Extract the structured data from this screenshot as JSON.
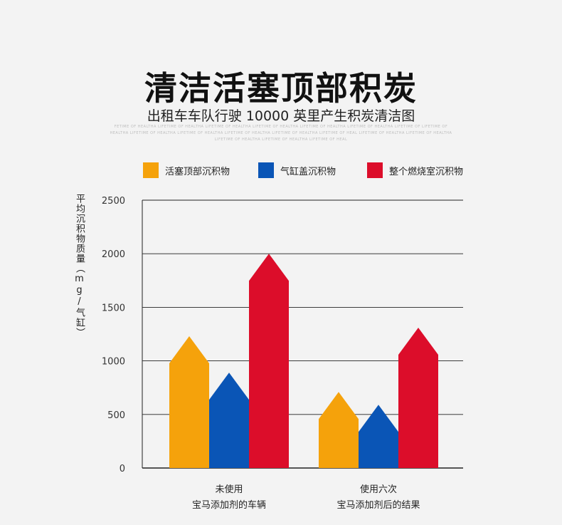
{
  "title": "清洁活塞顶部积炭",
  "subtitle": "出租车车队行驶 10000 英里产生积炭清洁图",
  "watermark": "FETIME OF HEALTHA LIFETIME OF HEALTHA LIFETIME OF HEALTHA LIFETIME OF HEALTHA LIFETIME OF HEALTHA LIFETIME OF HEALTHA LIFETIME OF LIFETIME OF HEALTHA LIFETIME OF HEALTHA LIFETIME OF HEALTHA LIFETIME OF HEALTHA LIFETIME OF HEALTHA LIFETIME OF HEAL LIFETIME OF HEALTHA LIFETIME OF HEALTHA LIFETIME OF HEALTHA LIFETIME OF HEALTHA LIFETIME OF HEAL",
  "colors": {
    "background": "#f3f3f3",
    "orange": "#f5a20b",
    "blue": "#0a55b6",
    "red": "#dc0d2a",
    "grid": "#222222"
  },
  "chart_data": {
    "type": "bar",
    "ylabel": "平均沉积物质量（mg/气缸）",
    "ylim": [
      0,
      2500
    ],
    "yticks": [
      0,
      500,
      1000,
      1500,
      2000,
      2500
    ],
    "grid": true,
    "legend_position": "top",
    "categories": [
      [
        "未使用",
        "宝马添加剂的车辆"
      ],
      [
        "使用六次",
        "宝马添加剂后的结果"
      ]
    ],
    "series": [
      {
        "name": "活塞顶部沉积物",
        "color": "#f5a20b",
        "values": [
          1230,
          710
        ]
      },
      {
        "name": "气缸盖沉积物",
        "color": "#0a55b6",
        "values": [
          890,
          590
        ]
      },
      {
        "name": "整个燃烧室沉积物",
        "color": "#dc0d2a",
        "values": [
          2000,
          1310
        ]
      }
    ]
  }
}
